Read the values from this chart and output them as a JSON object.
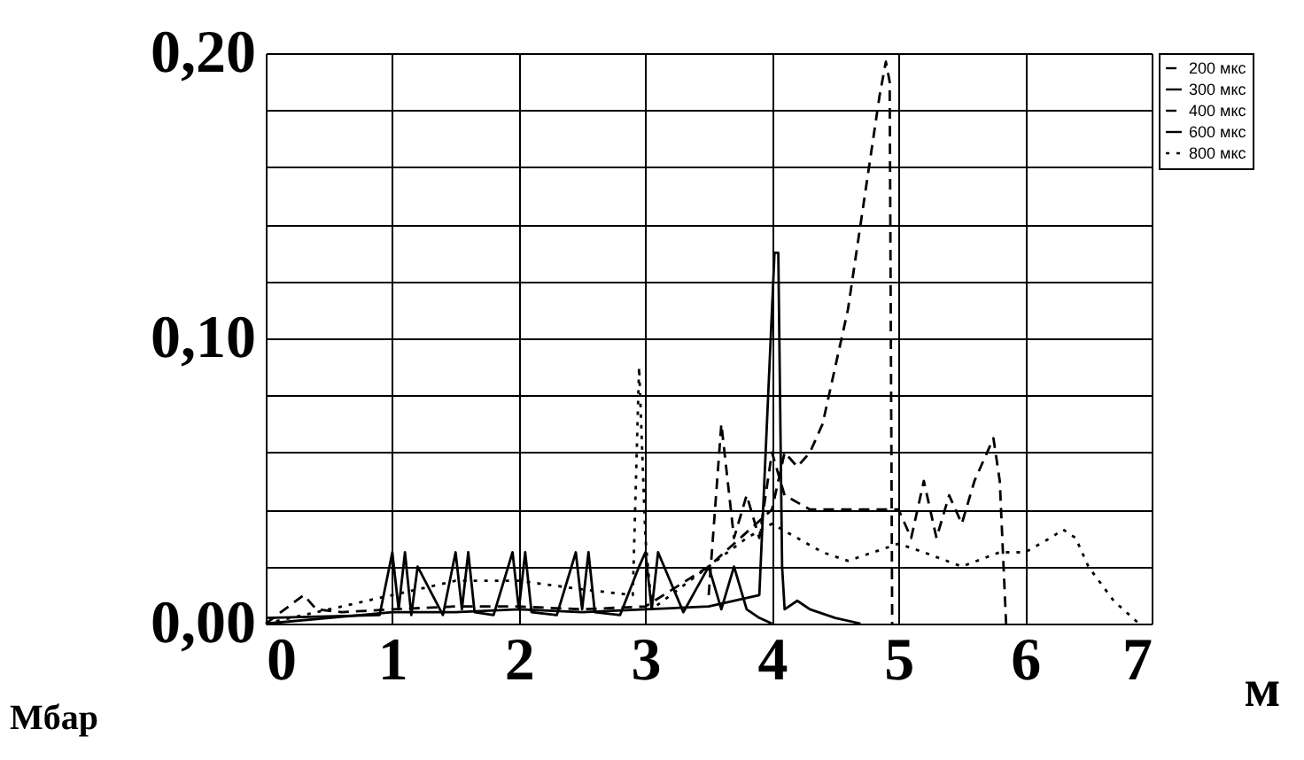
{
  "chart_data": {
    "type": "line",
    "xlabel": "м",
    "ylabel": "Мбар",
    "xlim": [
      0,
      7
    ],
    "xticks": [
      0,
      1,
      2,
      3,
      4,
      5,
      6,
      7
    ],
    "ylim": [
      0,
      0.2
    ],
    "yticks": [
      {
        "value": 0,
        "label": "0,00"
      },
      {
        "value": 0.02,
        "label": null
      },
      {
        "value": 0.04,
        "label": null
      },
      {
        "value": 0.06,
        "label": null
      },
      {
        "value": 0.08,
        "label": null
      },
      {
        "value": 0.1,
        "label": "0,10"
      },
      {
        "value": 0.12,
        "label": null
      },
      {
        "value": 0.14,
        "label": null
      },
      {
        "value": 0.16,
        "label": null
      },
      {
        "value": 0.18,
        "label": null
      },
      {
        "value": 0.2,
        "label": "0,20"
      }
    ],
    "grid": true,
    "legend": "right",
    "series": [
      {
        "name": "200 мкс",
        "color": "#000000",
        "line_style": "dashed",
        "x": [
          0,
          0.3,
          0.4,
          0.6,
          1,
          1.5,
          2,
          2.5,
          3,
          3.5,
          4,
          4.1,
          4.2,
          4.3,
          4.4,
          4.5,
          4.6,
          4.7,
          4.8,
          4.85,
          4.9,
          4.93,
          4.95
        ],
        "values": [
          0,
          0.01,
          0.005,
          0.004,
          0.005,
          0.006,
          0.006,
          0.005,
          0.006,
          0.02,
          0.04,
          0.06,
          0.055,
          0.06,
          0.07,
          0.09,
          0.11,
          0.14,
          0.17,
          0.185,
          0.197,
          0.19,
          0
        ]
      },
      {
        "name": "300 мкс",
        "color": "#000000",
        "line_style": "solid",
        "x": [
          0,
          0.5,
          1,
          1.5,
          2,
          2.5,
          3,
          3.5,
          3.9,
          4.0,
          4.02,
          4.05,
          4.08,
          4.1,
          4.2,
          4.3,
          4.5,
          4.7
        ],
        "values": [
          0,
          0.002,
          0.004,
          0.004,
          0.005,
          0.004,
          0.005,
          0.006,
          0.01,
          0.11,
          0.13,
          0.13,
          0.02,
          0.005,
          0.008,
          0.005,
          0.002,
          0
        ]
      },
      {
        "name": "400 мкс",
        "color": "#000000",
        "line_style": "dashed",
        "x": [
          3.5,
          3.6,
          3.7,
          3.8,
          3.9,
          4.0,
          4.1,
          4.3,
          4.5,
          4.7,
          4.9,
          5.0,
          5.1,
          5.2,
          5.3,
          5.4,
          5.5,
          5.6,
          5.7,
          5.75,
          5.8,
          5.85,
          5.9
        ],
        "values": [
          0.01,
          0.07,
          0.03,
          0.045,
          0.03,
          0.06,
          0.045,
          0.04,
          0.04,
          0.04,
          0.04,
          0.04,
          0.03,
          0.05,
          0.03,
          0.045,
          0.035,
          0.05,
          0.06,
          0.065,
          0.05,
          0,
          0
        ]
      },
      {
        "name": "600 мкс",
        "color": "#000000",
        "line_style": "solid",
        "x": [
          0,
          0.9,
          1.0,
          1.05,
          1.1,
          1.15,
          1.2,
          1.4,
          1.5,
          1.55,
          1.6,
          1.65,
          1.8,
          1.95,
          2.0,
          2.05,
          2.1,
          2.3,
          2.45,
          2.5,
          2.55,
          2.6,
          2.8,
          2.95,
          3.0,
          3.05,
          3.1,
          3.3,
          3.5,
          3.6,
          3.7,
          3.8,
          3.9,
          4.0
        ],
        "values": [
          0.002,
          0.003,
          0.025,
          0.005,
          0.025,
          0.003,
          0.02,
          0.003,
          0.025,
          0.005,
          0.025,
          0.004,
          0.003,
          0.025,
          0.005,
          0.025,
          0.004,
          0.003,
          0.025,
          0.005,
          0.025,
          0.004,
          0.003,
          0.02,
          0.025,
          0.005,
          0.025,
          0.004,
          0.02,
          0.005,
          0.02,
          0.005,
          0.002,
          0
        ]
      },
      {
        "name": "800 мкс",
        "color": "#000000",
        "line_style": "dotted",
        "x": [
          0,
          0.5,
          1,
          1.5,
          2,
          2.5,
          2.9,
          2.95,
          3.0,
          3.05,
          3.2,
          3.5,
          3.8,
          4.0,
          4.2,
          4.4,
          4.6,
          4.8,
          5.0,
          5.2,
          5.5,
          5.8,
          6.0,
          6.2,
          6.3,
          6.4,
          6.5,
          6.7,
          6.9
        ],
        "values": [
          0,
          0.005,
          0.01,
          0.015,
          0.015,
          0.012,
          0.01,
          0.09,
          0.03,
          0.005,
          0.01,
          0.02,
          0.03,
          0.035,
          0.03,
          0.025,
          0.022,
          0.025,
          0.028,
          0.025,
          0.02,
          0.025,
          0.025,
          0.03,
          0.033,
          0.03,
          0.02,
          0.008,
          0
        ]
      }
    ]
  }
}
